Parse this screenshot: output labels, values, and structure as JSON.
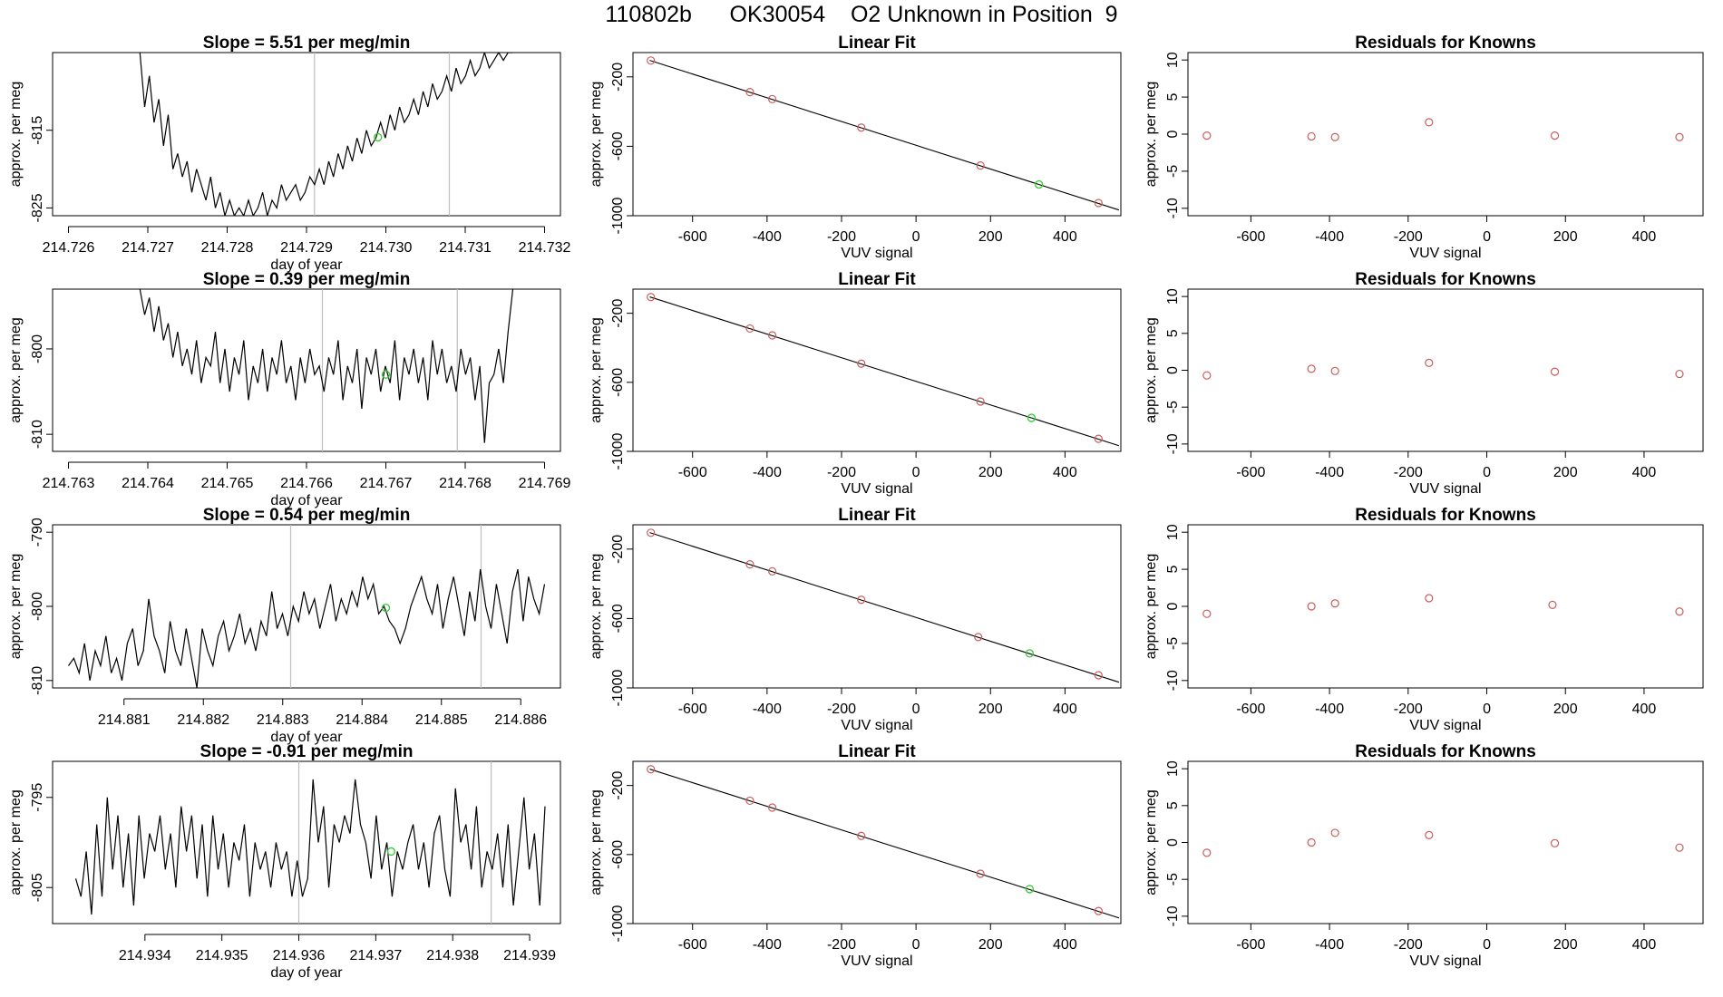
{
  "page": {
    "title": "110802b      OK30054    O2 Unknown in Position  9"
  },
  "colors": {
    "line": "#000000",
    "known_point": "#CD5C5C",
    "unknown_point": "#32CD32",
    "vertical_marker": "#BEBEBE"
  },
  "chart_data": [
    {
      "id": "row1-timeseries",
      "type": "line",
      "title": "Slope =  5.51  per meg/min",
      "xlabel": "day of year",
      "ylabel": "approx. per meg",
      "xlim": [
        214.7258,
        214.7322
      ],
      "ylim": [
        -826,
        -805
      ],
      "xticks": [
        "214.726",
        "214.727",
        "214.728",
        "214.729",
        "214.730",
        "214.731",
        "214.732"
      ],
      "yticks": [
        "-815",
        "-825"
      ],
      "vlines": [
        214.7291,
        214.7308
      ],
      "unknown_point": {
        "x": 214.7299,
        "y": -815.9
      },
      "series": {
        "x_start": 214.7269,
        "x_end": 214.7316,
        "y": [
          -805,
          -812,
          -808,
          -814,
          -811,
          -817,
          -813,
          -820,
          -818,
          -821,
          -819,
          -823,
          -820,
          -822,
          -824,
          -821,
          -825,
          -823,
          -826,
          -824,
          -826,
          -825,
          -826,
          -824,
          -826,
          -825,
          -823,
          -826,
          -824,
          -825,
          -822,
          -824,
          -823,
          -822,
          -824,
          -823,
          -821,
          -822,
          -820,
          -822,
          -819,
          -821,
          -818,
          -820,
          -817,
          -819,
          -816,
          -818,
          -815,
          -817,
          -816,
          -814,
          -816,
          -813,
          -815,
          -812,
          -814,
          -813,
          -811,
          -813,
          -810,
          -812,
          -809,
          -811,
          -810,
          -808,
          -810,
          -807,
          -809,
          -808,
          -806,
          -808,
          -807,
          -805,
          -807,
          -806,
          -805,
          -806,
          -805,
          -805
        ]
      }
    },
    {
      "id": "row1-linear",
      "type": "scatter",
      "title": "Linear Fit",
      "xlabel": "VUV signal",
      "ylabel": "approx. per meg",
      "xlim": [
        -760,
        550
      ],
      "ylim": [
        -1000,
        -60
      ],
      "xticks": [
        -600,
        -400,
        -200,
        0,
        200,
        400
      ],
      "yticks": [
        -200,
        -600,
        -1000
      ],
      "fit_line": [
        [
          -715,
          -105
        ],
        [
          545,
          -967
        ]
      ],
      "known": [
        [
          -712,
          -106
        ],
        [
          -446,
          -288
        ],
        [
          -386,
          -328
        ],
        [
          -147,
          -492
        ],
        [
          173,
          -711
        ],
        [
          490,
          -927
        ]
      ],
      "unknown": [
        [
          330,
          -820
        ]
      ]
    },
    {
      "id": "row1-residuals",
      "type": "scatter",
      "title": "Residuals for Knowns",
      "xlabel": "VUV signal",
      "ylabel": "approx. per meg",
      "xlim": [
        -760,
        550
      ],
      "ylim": [
        -11,
        11
      ],
      "xticks": [
        -600,
        -400,
        -200,
        0,
        200,
        400
      ],
      "yticks": [
        10,
        5,
        0,
        -5,
        -10
      ],
      "known": [
        [
          -712,
          -0.2
        ],
        [
          -446,
          -0.3
        ],
        [
          -386,
          -0.4
        ],
        [
          -147,
          1.6
        ],
        [
          173,
          -0.2
        ],
        [
          490,
          -0.4
        ]
      ]
    },
    {
      "id": "row2-timeseries",
      "type": "line",
      "title": "Slope =  0.39  per meg/min",
      "xlabel": "day of year",
      "ylabel": "approx. per meg",
      "xlim": [
        214.7628,
        214.7692
      ],
      "ylim": [
        -812,
        -793
      ],
      "xticks": [
        "214.763",
        "214.764",
        "214.765",
        "214.766",
        "214.767",
        "214.768",
        "214.769"
      ],
      "yticks": [
        "-800",
        "-810"
      ],
      "vlines": [
        214.7662,
        214.7679
      ],
      "unknown_point": {
        "x": 214.767,
        "y": -803
      },
      "series": {
        "x_start": 214.7639,
        "x_end": 214.7686,
        "y": [
          -793,
          -796,
          -794,
          -798,
          -795,
          -799,
          -797,
          -801,
          -798,
          -802,
          -800,
          -803,
          -799,
          -804,
          -801,
          -802,
          -798,
          -804,
          -800,
          -805,
          -801,
          -803,
          -799,
          -806,
          -802,
          -804,
          -800,
          -805,
          -801,
          -803,
          -799,
          -804,
          -802,
          -806,
          -801,
          -804,
          -800,
          -803,
          -802,
          -805,
          -801,
          -803,
          -799,
          -806,
          -802,
          -804,
          -800,
          -807,
          -801,
          -803,
          -800,
          -805,
          -802,
          -804,
          -799,
          -806,
          -801,
          -803,
          -800,
          -804,
          -801,
          -806,
          -799,
          -803,
          -800,
          -804,
          -802,
          -805,
          -800,
          -803,
          -801,
          -806,
          -802,
          -811,
          -804,
          -803,
          -800,
          -804,
          -798,
          -793
        ]
      }
    },
    {
      "id": "row2-linear",
      "type": "scatter",
      "title": "Linear Fit",
      "xlabel": "VUV signal",
      "ylabel": "approx. per meg",
      "xlim": [
        -760,
        550
      ],
      "ylim": [
        -1000,
        -60
      ],
      "xticks": [
        -600,
        -400,
        -200,
        0,
        200,
        400
      ],
      "yticks": [
        -200,
        -600,
        -1000
      ],
      "fit_line": [
        [
          -715,
          -105
        ],
        [
          545,
          -967
        ]
      ],
      "known": [
        [
          -712,
          -106
        ],
        [
          -446,
          -288
        ],
        [
          -386,
          -328
        ],
        [
          -147,
          -492
        ],
        [
          173,
          -711
        ],
        [
          490,
          -927
        ]
      ],
      "unknown": [
        [
          310,
          -806
        ]
      ]
    },
    {
      "id": "row2-residuals",
      "type": "scatter",
      "title": "Residuals for Knowns",
      "xlabel": "VUV signal",
      "ylabel": "approx. per meg",
      "xlim": [
        -760,
        550
      ],
      "ylim": [
        -11,
        11
      ],
      "xticks": [
        -600,
        -400,
        -200,
        0,
        200,
        400
      ],
      "yticks": [
        10,
        5,
        0,
        -5,
        -10
      ],
      "known": [
        [
          -712,
          -0.7
        ],
        [
          -446,
          0.2
        ],
        [
          -386,
          -0.1
        ],
        [
          -147,
          1.0
        ],
        [
          173,
          -0.2
        ],
        [
          490,
          -0.5
        ]
      ]
    },
    {
      "id": "row3-timeseries",
      "type": "line",
      "title": "Slope =  0.54  per meg/min",
      "xlabel": "day of year",
      "ylabel": "approx. per meg",
      "xlim": [
        214.8801,
        214.8865
      ],
      "ylim": [
        -811,
        -789
      ],
      "xticks": [
        "214.881",
        "214.882",
        "214.883",
        "214.884",
        "214.885",
        "214.886"
      ],
      "yticks": [
        "-790",
        "-800",
        "-810"
      ],
      "vlines": [
        214.8831,
        214.8855
      ],
      "unknown_point": {
        "x": 214.8843,
        "y": -800.2
      },
      "series": {
        "x_start": 214.8803,
        "x_end": 214.8863,
        "y": [
          -808,
          -807,
          -809,
          -805,
          -810,
          -806,
          -808,
          -804,
          -809,
          -807,
          -810,
          -805,
          -803,
          -808,
          -806,
          -799,
          -804,
          -806,
          -809,
          -802,
          -806,
          -808,
          -803,
          -807,
          -811,
          -803,
          -806,
          -808,
          -804,
          -802,
          -806,
          -804,
          -801,
          -805,
          -803,
          -806,
          -802,
          -804,
          -798,
          -803,
          -801,
          -804,
          -800,
          -802,
          -798,
          -801,
          -799,
          -803,
          -800,
          -797,
          -802,
          -799,
          -801,
          -798,
          -800,
          -796,
          -799,
          -797,
          -801,
          -800,
          -802,
          -803,
          -805,
          -803,
          -800,
          -798,
          -796,
          -799,
          -801,
          -797,
          -803,
          -799,
          -796,
          -800,
          -804,
          -798,
          -802,
          -795,
          -800,
          -803,
          -797,
          -801,
          -805,
          -798,
          -795,
          -802,
          -796,
          -799,
          -801,
          -797
        ]
      }
    },
    {
      "id": "row3-linear",
      "type": "scatter",
      "title": "Linear Fit",
      "xlabel": "VUV signal",
      "ylabel": "approx. per meg",
      "xlim": [
        -760,
        550
      ],
      "ylim": [
        -1000,
        -60
      ],
      "xticks": [
        -600,
        -400,
        -200,
        0,
        200,
        400
      ],
      "yticks": [
        -200,
        -600,
        -1000
      ],
      "fit_line": [
        [
          -715,
          -105
        ],
        [
          545,
          -967
        ]
      ],
      "known": [
        [
          -712,
          -106
        ],
        [
          -446,
          -288
        ],
        [
          -386,
          -328
        ],
        [
          -147,
          -492
        ],
        [
          167,
          -707
        ],
        [
          490,
          -927
        ]
      ],
      "unknown": [
        [
          305,
          -801
        ]
      ]
    },
    {
      "id": "row3-residuals",
      "type": "scatter",
      "title": "Residuals for Knowns",
      "xlabel": "VUV signal",
      "ylabel": "approx. per meg",
      "xlim": [
        -760,
        550
      ],
      "ylim": [
        -11,
        11
      ],
      "xticks": [
        -600,
        -400,
        -200,
        0,
        200,
        400
      ],
      "yticks": [
        10,
        5,
        0,
        -5,
        -10
      ],
      "known": [
        [
          -712,
          -1.0
        ],
        [
          -446,
          0.0
        ],
        [
          -386,
          0.4
        ],
        [
          -147,
          1.1
        ],
        [
          167,
          0.2
        ],
        [
          490,
          -0.7
        ]
      ]
    },
    {
      "id": "row4-timeseries",
      "type": "line",
      "title": "Slope =  -0.91  per meg/min",
      "xlabel": "day of year",
      "ylabel": "approx. per meg",
      "xlim": [
        214.9328,
        214.9394
      ],
      "ylim": [
        -809,
        -791
      ],
      "xticks": [
        "214.934",
        "214.935",
        "214.936",
        "214.937",
        "214.938",
        "214.939"
      ],
      "yticks": [
        "-795",
        "-805"
      ],
      "vlines": [
        214.936,
        214.9385
      ],
      "unknown_point": {
        "x": 214.9372,
        "y": -801
      },
      "series": {
        "x_start": 214.9331,
        "x_end": 214.9392,
        "y": [
          -804,
          -806,
          -801,
          -808,
          -798,
          -806,
          -795,
          -803,
          -797,
          -805,
          -799,
          -807,
          -797,
          -804,
          -799,
          -801,
          -797,
          -803,
          -799,
          -805,
          -796,
          -801,
          -797,
          -804,
          -798,
          -806,
          -797,
          -803,
          -799,
          -805,
          -800,
          -802,
          -798,
          -806,
          -800,
          -803,
          -801,
          -805,
          -800,
          -803,
          -801,
          -806,
          -802,
          -806,
          -804,
          -793,
          -800,
          -796,
          -805,
          -798,
          -800,
          -797,
          -799,
          -793,
          -798,
          -800,
          -804,
          -797,
          -803,
          -800,
          -806,
          -801,
          -803,
          -800,
          -798,
          -803,
          -800,
          -805,
          -799,
          -797,
          -803,
          -806,
          -794,
          -800,
          -798,
          -803,
          -796,
          -805,
          -801,
          -803,
          -799,
          -805,
          -798,
          -807,
          -801,
          -795,
          -803,
          -799,
          -807,
          -796
        ]
      }
    },
    {
      "id": "row4-linear",
      "type": "scatter",
      "title": "Linear Fit",
      "xlabel": "VUV signal",
      "ylabel": "approx. per meg",
      "xlim": [
        -760,
        550
      ],
      "ylim": [
        -1000,
        -60
      ],
      "xticks": [
        -600,
        -400,
        -200,
        0,
        200,
        400
      ],
      "yticks": [
        -200,
        -600,
        -1000
      ],
      "fit_line": [
        [
          -715,
          -105
        ],
        [
          545,
          -967
        ]
      ],
      "known": [
        [
          -712,
          -106
        ],
        [
          -446,
          -288
        ],
        [
          -386,
          -328
        ],
        [
          -147,
          -492
        ],
        [
          173,
          -711
        ],
        [
          490,
          -927
        ]
      ],
      "unknown": [
        [
          305,
          -800
        ]
      ]
    },
    {
      "id": "row4-residuals",
      "type": "scatter",
      "title": "Residuals for Knowns",
      "xlabel": "VUV signal",
      "ylabel": "approx. per meg",
      "xlim": [
        -760,
        550
      ],
      "ylim": [
        -11,
        11
      ],
      "xticks": [
        -600,
        -400,
        -200,
        0,
        200,
        400
      ],
      "yticks": [
        10,
        5,
        0,
        -5,
        -10
      ],
      "known": [
        [
          -712,
          -1.4
        ],
        [
          -446,
          0.0
        ],
        [
          -386,
          1.3
        ],
        [
          -147,
          1.0
        ],
        [
          173,
          -0.1
        ],
        [
          490,
          -0.7
        ]
      ]
    }
  ]
}
